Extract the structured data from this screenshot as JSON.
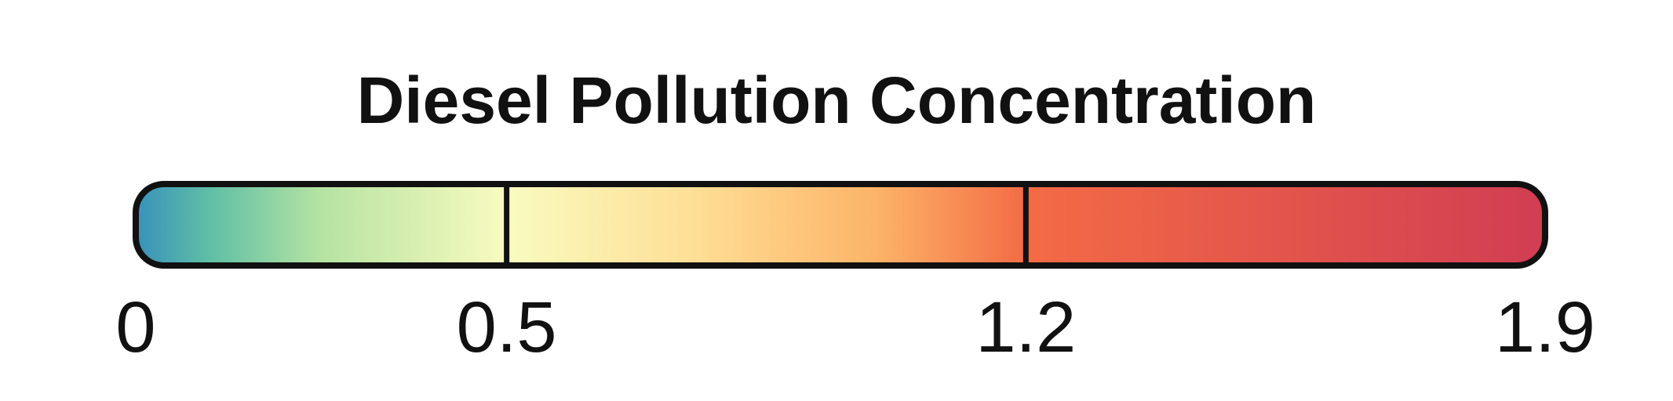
{
  "chart_data": {
    "type": "heatmap",
    "title": "Diesel Pollution Concentration",
    "xlabel": "",
    "ylabel": "",
    "range": [
      0,
      1.9
    ],
    "ticks": [
      0,
      0.5,
      1.2,
      1.9
    ],
    "tick_labels": [
      "0",
      "0.5",
      "1.2",
      "1.9"
    ],
    "dividers": [
      0.5,
      1.2
    ],
    "colors": {
      "frame": "#111111",
      "gradient": [
        {
          "value": 0,
          "color": "#3891bc"
        },
        {
          "value": 0.1,
          "color": "#5fbfa5"
        },
        {
          "value": 0.25,
          "color": "#b6e3a2"
        },
        {
          "value": 0.5,
          "color": "#f9fbc0"
        },
        {
          "value": 0.75,
          "color": "#fedf96"
        },
        {
          "value": 1.0,
          "color": "#fcb367"
        },
        {
          "value": 1.2,
          "color": "#f46b45"
        },
        {
          "value": 1.9,
          "color": "#d13d53"
        }
      ]
    }
  }
}
